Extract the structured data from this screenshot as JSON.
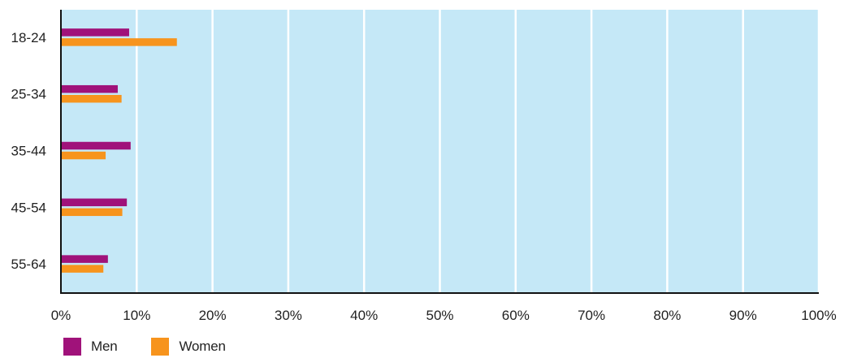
{
  "chart_data": {
    "type": "bar",
    "orientation": "horizontal",
    "categories": [
      "18-24",
      "25-34",
      "35-44",
      "45-54",
      "55-64"
    ],
    "series": [
      {
        "name": "Men",
        "color": "#a0127a",
        "values": [
          9,
          7.5,
          9.2,
          8.7,
          6.2
        ]
      },
      {
        "name": "Women",
        "color": "#f7941d",
        "values": [
          15.3,
          8,
          5.9,
          8.1,
          5.6
        ]
      }
    ],
    "x_ticks": [
      "0%",
      "10%",
      "20%",
      "30%",
      "40%",
      "50%",
      "60%",
      "70%",
      "80%",
      "90%",
      "100%"
    ],
    "xlim": [
      0,
      100
    ],
    "grid": true,
    "plot_background": "#c5e8f7",
    "gridline_color": "#ffffff",
    "legend_position": "bottom-left"
  }
}
